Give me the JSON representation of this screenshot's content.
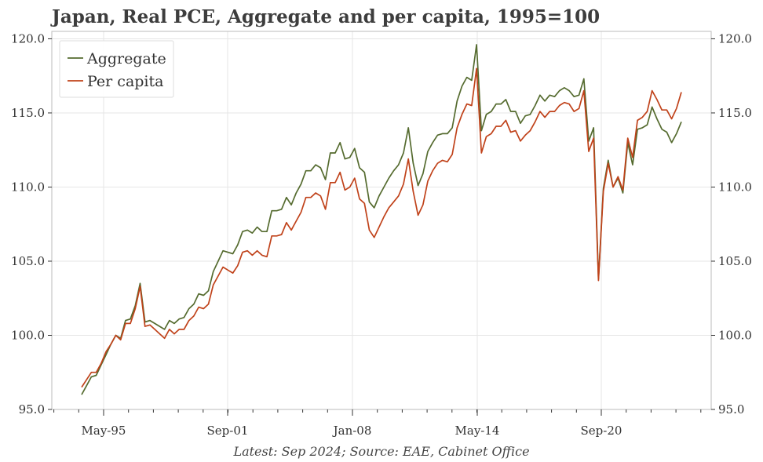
{
  "chart_data": {
    "type": "line",
    "title": "Japan, Real PCE, Aggregate and per capita, 1995=100",
    "footer": "Latest: Sep 2024; Source: EAE, Cabinet Office",
    "ylim": [
      95,
      120.5
    ],
    "yticks": [
      "95.0",
      "100.0",
      "105.0",
      "110.0",
      "115.0",
      "120.0"
    ],
    "xticks": [
      "May-95",
      "Sep-01",
      "Jan-08",
      "May-14",
      "Sep-20"
    ],
    "grid": true,
    "legend_position": "top-left",
    "series": [
      {
        "name": "Aggregate",
        "color": "#556b2f",
        "values": [
          96.0,
          96.6,
          97.2,
          97.3,
          98.0,
          98.7,
          99.4,
          100.0,
          99.8,
          101.0,
          101.1,
          102.0,
          103.5,
          100.9,
          101.0,
          100.8,
          100.6,
          100.4,
          101.0,
          100.8,
          101.1,
          101.2,
          101.8,
          102.1,
          102.8,
          102.7,
          103.0,
          104.3,
          105.0,
          105.7,
          105.6,
          105.5,
          106.1,
          107.0,
          107.1,
          106.9,
          107.3,
          107.0,
          107.0,
          108.4,
          108.4,
          108.5,
          109.3,
          108.8,
          109.6,
          110.2,
          111.1,
          111.1,
          111.5,
          111.3,
          110.5,
          112.3,
          112.3,
          113.0,
          111.9,
          112.0,
          112.6,
          111.3,
          111.0,
          109.0,
          108.6,
          109.4,
          110.0,
          110.6,
          111.1,
          111.5,
          112.3,
          114.0,
          111.6,
          110.1,
          110.9,
          112.4,
          113.0,
          113.5,
          113.6,
          113.6,
          114.0,
          115.8,
          116.8,
          117.4,
          117.2,
          119.6,
          113.8,
          114.9,
          115.1,
          115.6,
          115.6,
          115.9,
          115.1,
          115.1,
          114.3,
          114.8,
          114.9,
          115.5,
          116.2,
          115.8,
          116.2,
          116.1,
          116.5,
          116.7,
          116.5,
          116.1,
          116.2,
          117.3,
          113.1,
          114.0,
          103.8,
          109.9,
          111.8,
          110.0,
          110.6,
          109.6,
          113.0,
          111.5,
          113.9,
          114.0,
          114.2,
          115.4,
          114.6,
          113.9,
          113.7,
          113.0,
          113.6,
          114.4
        ]
      },
      {
        "name": "Per capita",
        "color": "#c0421a",
        "values": [
          96.5,
          97.0,
          97.5,
          97.5,
          98.1,
          98.9,
          99.4,
          100.0,
          99.7,
          100.8,
          100.8,
          101.8,
          103.3,
          100.6,
          100.7,
          100.4,
          100.1,
          99.8,
          100.4,
          100.1,
          100.4,
          100.4,
          101.0,
          101.3,
          101.9,
          101.8,
          102.1,
          103.4,
          104.0,
          104.6,
          104.4,
          104.2,
          104.7,
          105.6,
          105.7,
          105.4,
          105.7,
          105.4,
          105.3,
          106.7,
          106.7,
          106.8,
          107.6,
          107.1,
          107.7,
          108.3,
          109.3,
          109.3,
          109.6,
          109.4,
          108.5,
          110.3,
          110.3,
          111.0,
          109.8,
          110.0,
          110.6,
          109.2,
          108.9,
          107.1,
          106.6,
          107.3,
          108.0,
          108.6,
          109.0,
          109.4,
          110.2,
          111.9,
          109.7,
          108.1,
          108.8,
          110.4,
          111.1,
          111.6,
          111.8,
          111.7,
          112.2,
          114.0,
          114.9,
          115.6,
          115.5,
          118.0,
          112.3,
          113.4,
          113.6,
          114.1,
          114.1,
          114.5,
          113.7,
          113.8,
          113.1,
          113.5,
          113.8,
          114.4,
          115.1,
          114.7,
          115.1,
          115.1,
          115.5,
          115.7,
          115.6,
          115.1,
          115.3,
          116.5,
          112.4,
          113.3,
          103.7,
          109.7,
          111.6,
          110.0,
          110.7,
          109.8,
          113.3,
          112.0,
          114.5,
          114.7,
          115.1,
          116.5,
          115.9,
          115.2,
          115.2,
          114.6,
          115.3,
          116.4
        ]
      }
    ]
  }
}
